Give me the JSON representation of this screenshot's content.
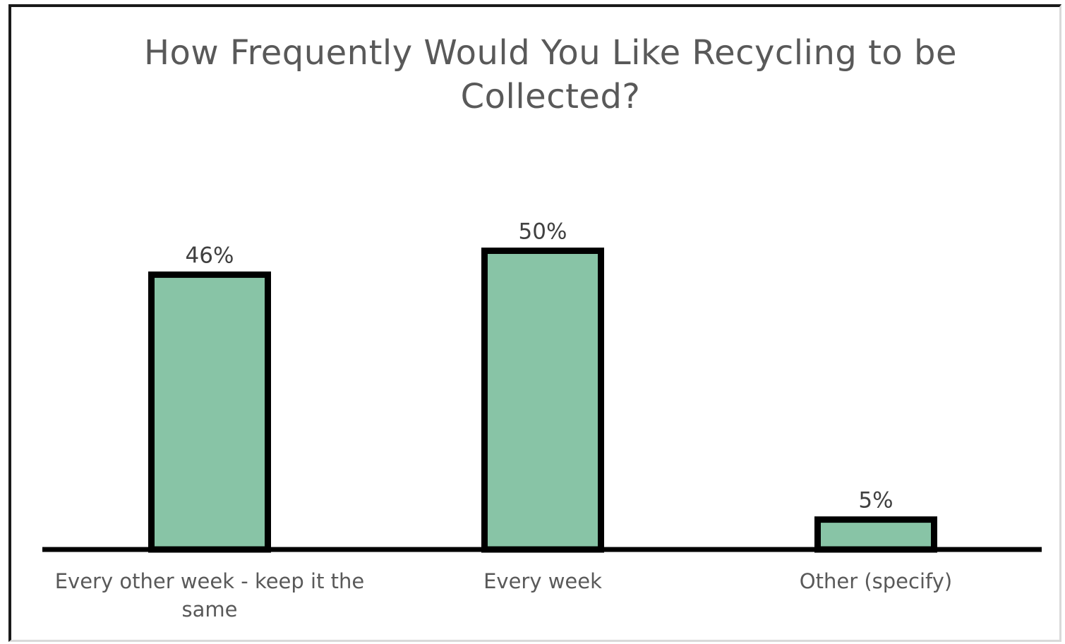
{
  "chart_data": {
    "type": "bar",
    "title": "How Frequently Would You Like Recycling to be Collected?",
    "xlabel": "",
    "ylabel": "",
    "categories": [
      "Every other week - keep it the same",
      "Every week",
      "Other (specify)"
    ],
    "category_label_lines": [
      [
        "Every other week - keep it the",
        "same"
      ],
      [
        "Every week"
      ],
      [
        "Other (specify)"
      ]
    ],
    "values": [
      46,
      50,
      5
    ],
    "value_labels": [
      "46%",
      "50%",
      "5%"
    ],
    "ylim": [
      0,
      55
    ],
    "grid": false,
    "legend": "none",
    "bar_color": "#88c4a6",
    "bar_outline_color": "#000000",
    "axis_color": "#000000"
  }
}
